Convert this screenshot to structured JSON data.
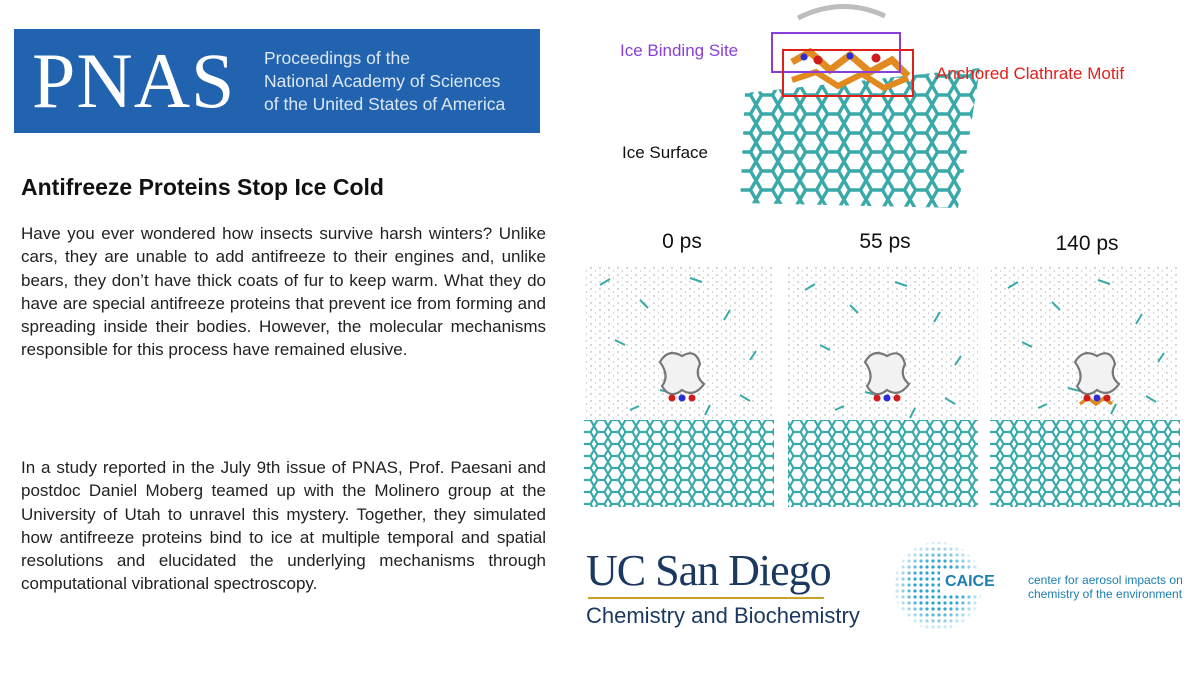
{
  "journal": {
    "logo": "PNAS",
    "lines": [
      "Proceedings of the",
      "National Academy of Sciences",
      "of the United States of America"
    ]
  },
  "article": {
    "title": "Antifreeze Proteins Stop Ice Cold",
    "paragraphs": [
      "Have you ever wondered how insects survive harsh winters? Unlike cars, they are unable to add antifreeze to their engines and, unlike bears, they don’t have thick coats of fur to keep warm. What they do have are special antifreeze proteins that prevent ice from forming and spreading inside their bodies. However, the molecular mechanisms responsible for this process have remained elusive.",
      "In a study reported in the July 9th issue of PNAS, Prof. Paesani and postdoc Daniel Moberg teamed up with the Molinero group at the University of Utah to unravel this mystery. Together, they simulated how antifreeze proteins bind to ice at multiple temporal and spatial resolutions and elucidated the underlying mechanisms through computational vibrational spectroscopy."
    ]
  },
  "figure": {
    "labels": {
      "ice_binding_site": "Ice Binding Site",
      "anchored_clathrate": "Anchored Clathrate Motif",
      "ice_surface": "Ice Surface"
    },
    "snapshots": [
      "0 ps",
      "55 ps",
      "140 ps"
    ],
    "colors": {
      "ice": "#3aa9a9",
      "binding_box": "#8a3fd8",
      "clathrate_box": "#e0201b",
      "clathrate": "#e08a20"
    }
  },
  "ucsd": {
    "name": "UC San Diego",
    "dept": "Chemistry and Biochemistry"
  },
  "caice": {
    "name": "CAICE",
    "lines": [
      "center for aerosol impacts on",
      "chemistry of the environment"
    ]
  }
}
